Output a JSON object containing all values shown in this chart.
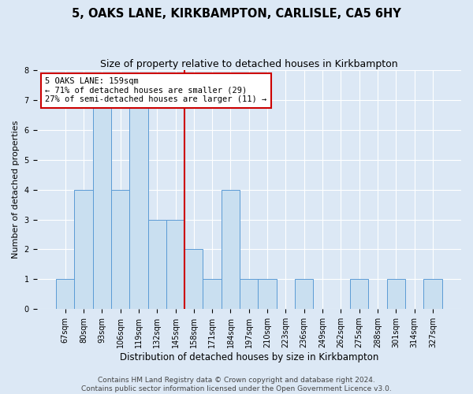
{
  "title": "5, OAKS LANE, KIRKBAMPTON, CARLISLE, CA5 6HY",
  "subtitle": "Size of property relative to detached houses in Kirkbampton",
  "xlabel": "Distribution of detached houses by size in Kirkbampton",
  "ylabel": "Number of detached properties",
  "bins": [
    "67sqm",
    "80sqm",
    "93sqm",
    "106sqm",
    "119sqm",
    "132sqm",
    "145sqm",
    "158sqm",
    "171sqm",
    "184sqm",
    "197sqm",
    "210sqm",
    "223sqm",
    "236sqm",
    "249sqm",
    "262sqm",
    "275sqm",
    "288sqm",
    "301sqm",
    "314sqm",
    "327sqm"
  ],
  "values": [
    1,
    4,
    7,
    4,
    7,
    3,
    3,
    2,
    1,
    4,
    1,
    1,
    0,
    1,
    0,
    0,
    1,
    0,
    1,
    0,
    1
  ],
  "bar_color": "#c9dff0",
  "bar_edge_color": "#5b9bd5",
  "highlight_line_idx": 7,
  "highlight_color": "#cc0000",
  "annotation_title": "5 OAKS LANE: 159sqm",
  "annotation_line1": "← 71% of detached houses are smaller (29)",
  "annotation_line2": "27% of semi-detached houses are larger (11) →",
  "annotation_box_color": "#ffffff",
  "annotation_border_color": "#cc0000",
  "ylim": [
    0,
    8
  ],
  "yticks": [
    0,
    1,
    2,
    3,
    4,
    5,
    6,
    7,
    8
  ],
  "background_color": "#dce8f5",
  "plot_background": "#dce8f5",
  "footer1": "Contains HM Land Registry data © Crown copyright and database right 2024.",
  "footer2": "Contains public sector information licensed under the Open Government Licence v3.0.",
  "title_fontsize": 10.5,
  "subtitle_fontsize": 9,
  "xlabel_fontsize": 8.5,
  "ylabel_fontsize": 8,
  "tick_fontsize": 7,
  "annotation_fontsize": 7.5,
  "footer_fontsize": 6.5
}
